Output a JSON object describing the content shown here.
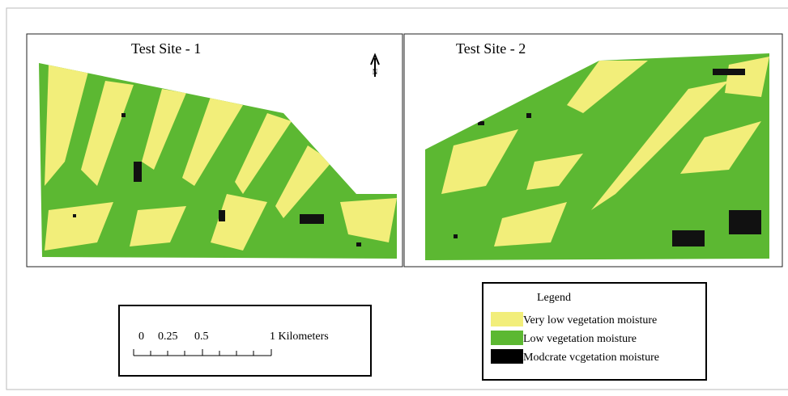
{
  "panels": [
    {
      "title": "Test Site - 1"
    },
    {
      "title": "Test Site - 2"
    }
  ],
  "north_arrow": {
    "label": "N"
  },
  "scale_bar": {
    "labels": [
      "0",
      "0.25",
      "0.5",
      "1 Kilometers"
    ]
  },
  "legend": {
    "title": "Legend",
    "items": [
      "Very low vegetation moisture",
      "Low vegetation moisture",
      "Modcrate vcgetation moisture"
    ]
  }
}
